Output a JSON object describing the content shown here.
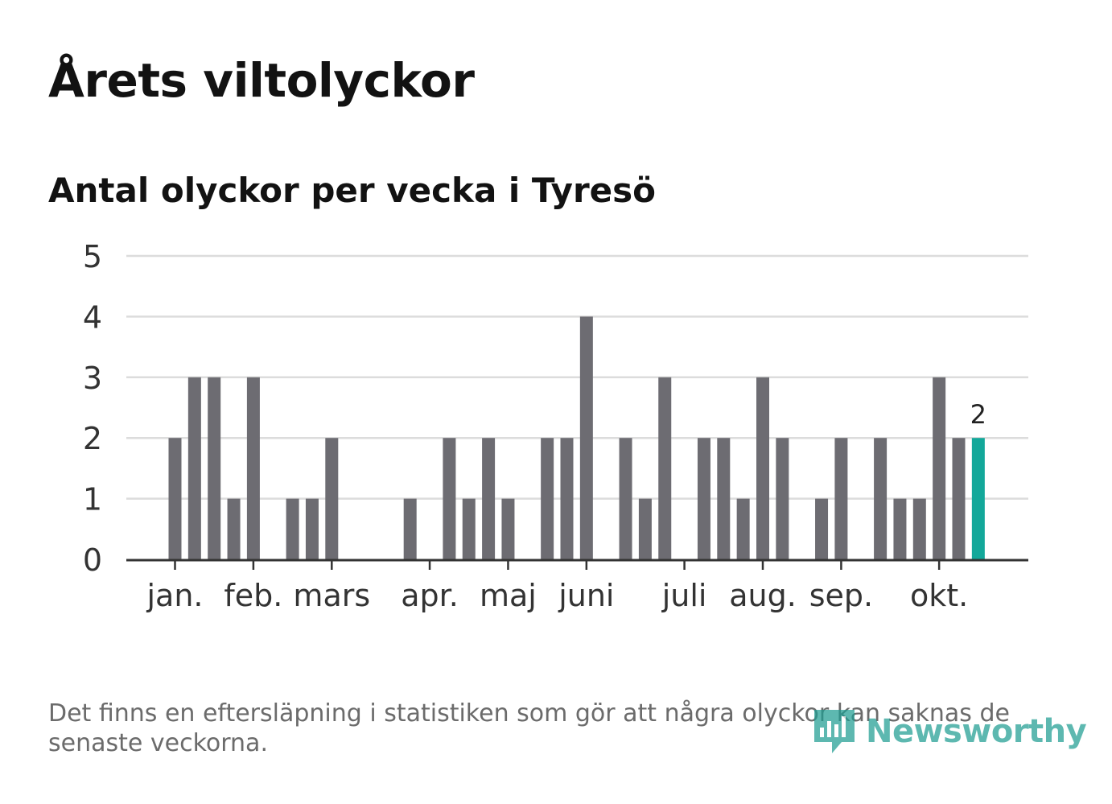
{
  "title": "Årets viltolyckor",
  "subtitle": "Antal olyckor per vecka i Tyresö",
  "footnote": "Det finns en eftersläpning i statistiken som gör att några olyckor kan saknas de senaste veckorna.",
  "logo": {
    "text": "Newsworthy",
    "icon": "newsworthy-logo-icon",
    "color": "#1f9e92"
  },
  "chart_data": {
    "type": "bar",
    "title": "Antal olyckor per vecka i Tyresö",
    "xlabel": "",
    "ylabel": "",
    "ylim": [
      0,
      5
    ],
    "yticks": [
      0,
      1,
      2,
      3,
      4,
      5
    ],
    "grid": true,
    "bar_color": "#6d6c72",
    "highlight_color": "#13a89a",
    "weeks": [
      1,
      2,
      3,
      4,
      5,
      6,
      7,
      8,
      9,
      10,
      11,
      12,
      13,
      14,
      15,
      16,
      17,
      18,
      19,
      20,
      21,
      22,
      23,
      24,
      25,
      26,
      27,
      28,
      29,
      30,
      31,
      32,
      33,
      34,
      35,
      36,
      37,
      38,
      39,
      40,
      41,
      42
    ],
    "values": [
      2,
      3,
      3,
      1,
      3,
      0,
      1,
      1,
      2,
      0,
      0,
      0,
      1,
      0,
      2,
      1,
      2,
      1,
      0,
      2,
      2,
      4,
      0,
      2,
      1,
      3,
      0,
      2,
      2,
      1,
      3,
      2,
      0,
      1,
      2,
      0,
      2,
      1,
      1,
      3,
      2,
      2
    ],
    "highlight_index": 41,
    "highlight_label": "2",
    "month_labels": [
      {
        "label": "jan.",
        "week": 1
      },
      {
        "label": "feb.",
        "week": 5
      },
      {
        "label": "mars",
        "week": 9
      },
      {
        "label": "apr.",
        "week": 14
      },
      {
        "label": "maj",
        "week": 18
      },
      {
        "label": "juni",
        "week": 22
      },
      {
        "label": "juli",
        "week": 27
      },
      {
        "label": "aug.",
        "week": 31
      },
      {
        "label": "sep.",
        "week": 35
      },
      {
        "label": "okt.",
        "week": 40
      }
    ]
  }
}
